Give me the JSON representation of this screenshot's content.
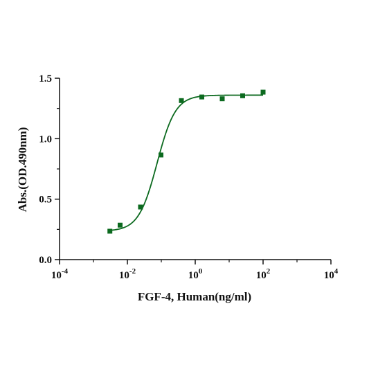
{
  "chart_data": {
    "type": "scatter",
    "title": "",
    "xlabel": "FGF-4, Human(ng/ml)",
    "ylabel": "Abs.(OD.490nm)",
    "x_scale": "log10",
    "xlim": [
      0.0001,
      10000
    ],
    "ylim": [
      0,
      1.5
    ],
    "x_ticks": [
      {
        "value": 0.0001,
        "base": "10",
        "exp": "-4"
      },
      {
        "value": 0.01,
        "base": "10",
        "exp": "-2"
      },
      {
        "value": 1,
        "base": "10",
        "exp": "0"
      },
      {
        "value": 100,
        "base": "10",
        "exp": "2"
      },
      {
        "value": 10000,
        "base": "10",
        "exp": "4"
      }
    ],
    "y_ticks": [
      {
        "value": 0,
        "label": "0.0"
      },
      {
        "value": 0.5,
        "label": "0.5"
      },
      {
        "value": 1.0,
        "label": "1.0"
      },
      {
        "value": 1.5,
        "label": "1.5"
      }
    ],
    "grid": false,
    "legend": "none",
    "series": [
      {
        "color": "#0c6a1f",
        "marker": "square",
        "x": [
          0.00305,
          0.0061,
          0.0244,
          0.0977,
          0.391,
          1.5625,
          6.25,
          25,
          100
        ],
        "y": [
          0.235,
          0.285,
          0.435,
          0.865,
          1.315,
          1.345,
          1.33,
          1.355,
          1.385
        ]
      }
    ],
    "fit_curve": {
      "model": "4PL",
      "color": "#0c6a1f",
      "bottom": 0.235,
      "top": 1.36,
      "ec50": 0.075,
      "hill": 1.6
    }
  }
}
